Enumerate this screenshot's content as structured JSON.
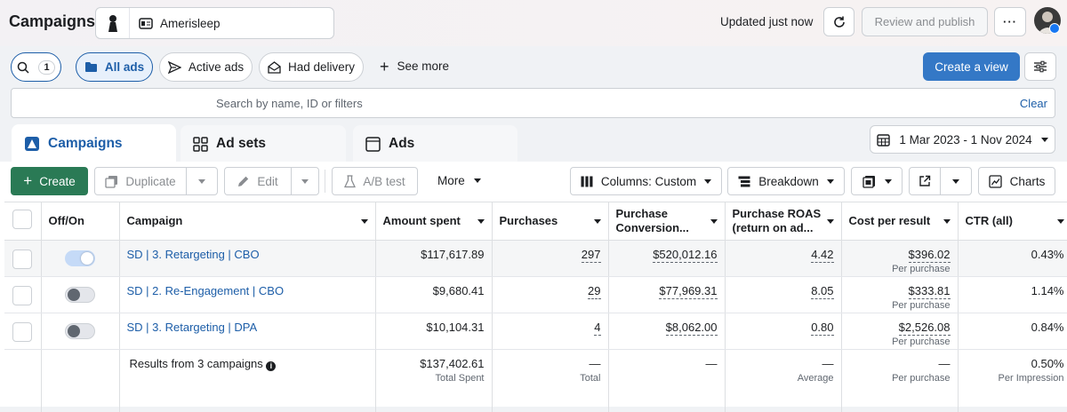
{
  "header": {
    "title": "Campaigns",
    "account_name": "Amerisleep",
    "updated": "Updated just now",
    "review_publish": "Review and publish",
    "more_dots": "···"
  },
  "filters": {
    "search_count": "1",
    "all_ads": "All ads",
    "active_ads": "Active ads",
    "had_delivery": "Had delivery",
    "see_more": "See more",
    "create_view": "Create a view"
  },
  "search": {
    "placeholder": "Search by name, ID or filters",
    "clear": "Clear"
  },
  "tabs": [
    {
      "label": "Campaigns"
    },
    {
      "label": "Ad sets"
    },
    {
      "label": "Ads"
    }
  ],
  "date_range": "1 Mar 2023 - 1 Nov 2024",
  "toolbar": {
    "create": "Create",
    "duplicate": "Duplicate",
    "edit": "Edit",
    "ab_test": "A/B test",
    "more": "More",
    "columns": "Columns: Custom",
    "breakdown": "Breakdown",
    "charts": "Charts"
  },
  "table": {
    "headers": {
      "offon": "Off/On",
      "campaign": "Campaign",
      "amount": "Amount spent",
      "purchases": "Purchases",
      "pcv_1": "Purchase",
      "pcv_2": "Conversion...",
      "roas_1": "Purchase ROAS",
      "roas_2": "(return on ad...",
      "cpr": "Cost per result",
      "ctr": "CTR (all)"
    },
    "rows": [
      {
        "toggle": "on",
        "campaign": "SD | 3. Retargeting | CBO",
        "amount": "$117,617.89",
        "purchases": "297",
        "pcv": "$520,012.16",
        "roas": "4.42",
        "cpr": "$396.02",
        "cpr_sub": "Per purchase",
        "ctr": "0.43%"
      },
      {
        "toggle": "off",
        "campaign": "SD | 2. Re-Engagement | CBO",
        "amount": "$9,680.41",
        "purchases": "29",
        "pcv": "$77,969.31",
        "roas": "8.05",
        "cpr": "$333.81",
        "cpr_sub": "Per purchase",
        "ctr": "1.14%"
      },
      {
        "toggle": "off",
        "campaign": "SD | 3. Retargeting | DPA",
        "amount": "$10,104.31",
        "purchases": "4",
        "pcv": "$8,062.00",
        "roas": "0.80",
        "cpr": "$2,526.08",
        "cpr_sub": "Per purchase",
        "ctr": "0.84%"
      }
    ],
    "summary": {
      "label": "Results from 3 campaigns",
      "amount": "$137,402.61",
      "amount_sub": "Total Spent",
      "purchases": "—",
      "purchases_sub": "Total",
      "pcv": "—",
      "roas": "—",
      "roas_sub": "Average",
      "cpr": "—",
      "cpr_sub": "Per purchase",
      "ctr": "0.50%",
      "ctr_sub": "Per Impression"
    }
  },
  "colors": {
    "accent": "#1d5ea8",
    "create_green": "#2a7a55",
    "create_view_blue": "#3478c6"
  }
}
